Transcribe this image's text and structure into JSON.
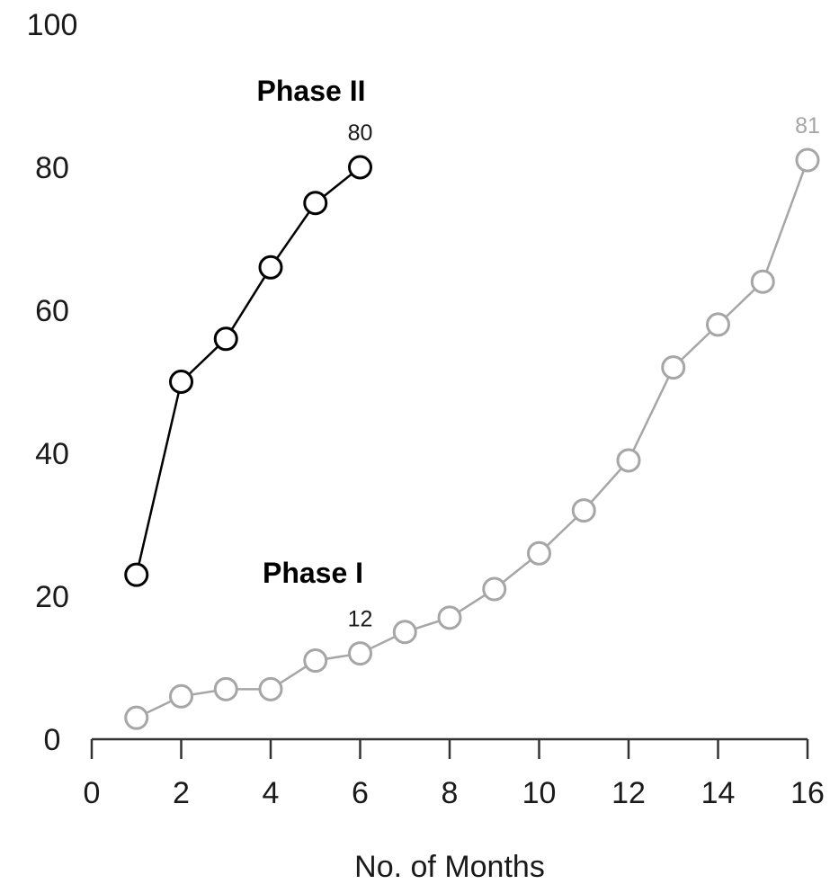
{
  "chart_data": {
    "type": "line",
    "xlabel": "No. of Months",
    "ylabel": "",
    "xlim": [
      0,
      16
    ],
    "ylim": [
      0,
      100
    ],
    "xticks": [
      "0",
      "2",
      "4",
      "6",
      "8",
      "10",
      "12",
      "14",
      "16"
    ],
    "yticks": [
      "0",
      "20",
      "40",
      "60",
      "80",
      "100"
    ],
    "grid": false,
    "legend": "none",
    "series": [
      {
        "name": "Phase I",
        "color": "#a6a6a6",
        "x": [
          1,
          2,
          3,
          4,
          5,
          6,
          7,
          8,
          9,
          10,
          11,
          12,
          13,
          14,
          15,
          16
        ],
        "y": [
          3,
          6,
          7,
          7,
          11,
          12,
          15,
          17,
          21,
          26,
          32,
          39,
          52,
          58,
          64,
          81
        ],
        "data_labels": [
          {
            "x": 6,
            "text": "12"
          },
          {
            "x": 16,
            "text": "81"
          }
        ]
      },
      {
        "name": "Phase II",
        "color": "#000000",
        "x": [
          1,
          2,
          3,
          4,
          5,
          6
        ],
        "y": [
          23,
          50,
          56,
          66,
          75,
          80
        ],
        "data_labels": [
          {
            "x": 6,
            "text": "80"
          }
        ]
      }
    ]
  }
}
